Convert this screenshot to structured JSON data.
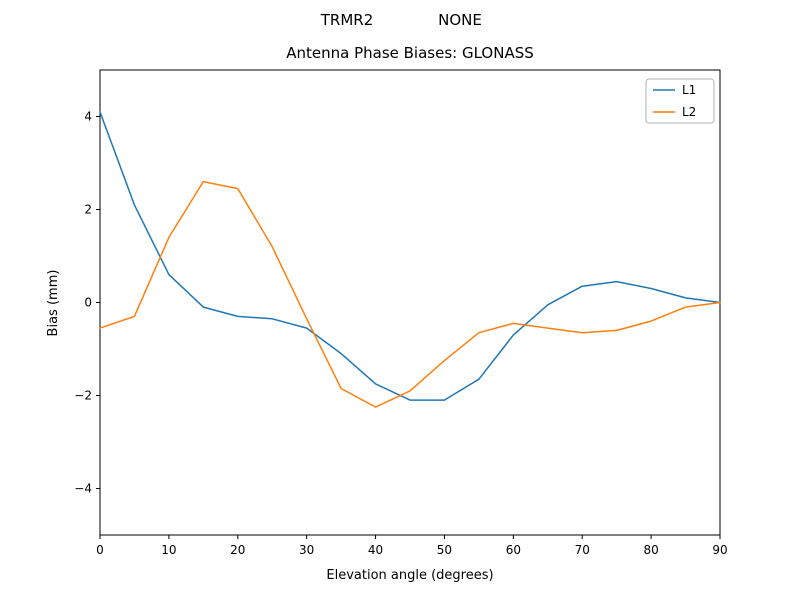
{
  "figure": {
    "background": "#ffffff"
  },
  "chart_data": {
    "type": "line",
    "suptitle": {
      "left": "TRMR2",
      "right": "NONE"
    },
    "title": "Antenna Phase Biases: GLONASS",
    "xlabel": "Elevation angle (degrees)",
    "ylabel": "Bias (mm)",
    "xlim": [
      0,
      90
    ],
    "ylim": [
      -5,
      5
    ],
    "xticks": [
      0,
      10,
      20,
      30,
      40,
      50,
      60,
      70,
      80,
      90
    ],
    "yticks": [
      -4,
      -2,
      0,
      2,
      4
    ],
    "grid": false,
    "legend_position": "upper right",
    "x": [
      0,
      5,
      10,
      15,
      20,
      25,
      30,
      35,
      40,
      45,
      50,
      55,
      60,
      65,
      70,
      75,
      80,
      85,
      90
    ],
    "series": [
      {
        "name": "L1",
        "color": "#1f77b4",
        "values": [
          4.1,
          2.1,
          0.6,
          -0.1,
          -0.3,
          -0.35,
          -0.55,
          -1.1,
          -1.75,
          -2.1,
          -2.1,
          -1.65,
          -0.7,
          -0.05,
          0.35,
          0.45,
          0.3,
          0.1,
          0.0
        ]
      },
      {
        "name": "L2",
        "color": "#ff7f0e",
        "values": [
          -0.55,
          -0.3,
          1.4,
          2.6,
          2.45,
          1.2,
          -0.35,
          -1.85,
          -2.25,
          -1.9,
          -1.25,
          -0.65,
          -0.45,
          -0.55,
          -0.65,
          -0.6,
          -0.4,
          -0.1,
          0.0
        ]
      }
    ]
  }
}
